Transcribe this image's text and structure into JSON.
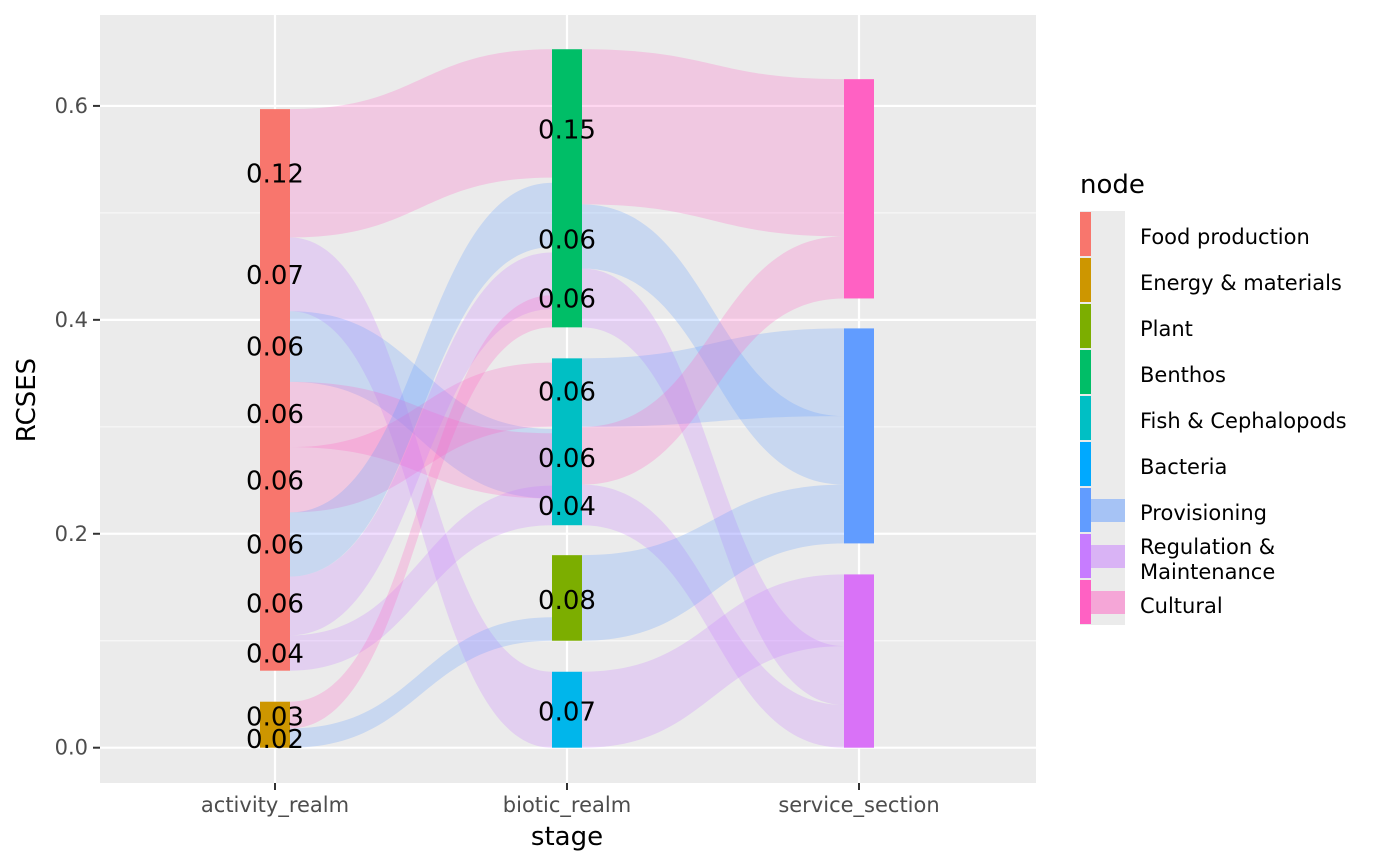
{
  "chart_data": {
    "type": "sankey",
    "xlabel": "stage",
    "ylabel": "RCSES",
    "ylim": [
      -0.033,
      0.685
    ],
    "y_ticks": [
      0.0,
      0.2,
      0.4,
      0.6
    ],
    "y_tick_labels": [
      "0.0",
      "0.2",
      "0.4",
      "0.6"
    ],
    "stages": [
      "activity_realm",
      "biotic_realm",
      "service_section"
    ],
    "grid": true,
    "legend_position": "right",
    "legend_title": "node",
    "legend": [
      {
        "label": "Food production",
        "color": "#F8766D",
        "kind": "node"
      },
      {
        "label": "Energy & materials",
        "color": "#CD9600",
        "kind": "node"
      },
      {
        "label": "Plant",
        "color": "#7CAE00",
        "kind": "node"
      },
      {
        "label": "Benthos",
        "color": "#00BE67",
        "kind": "node"
      },
      {
        "label": "Fish & Cephalopods",
        "color": "#00BFC4",
        "kind": "node"
      },
      {
        "label": "Bacteria",
        "color": "#00A9FF",
        "kind": "node"
      },
      {
        "label": "Provisioning",
        "color": "#619CFF",
        "kind": "flow",
        "label_lines": [
          "Provisioning"
        ]
      },
      {
        "label": "Regulation & Maintenance",
        "color": "#C77CFF",
        "kind": "flow",
        "label_lines": [
          "Regulation &",
          "Maintenance"
        ]
      },
      {
        "label": "Cultural",
        "color": "#FF61C3",
        "kind": "flow",
        "label_lines": [
          "Cultural"
        ]
      }
    ],
    "nodes": [
      {
        "stage": 0,
        "name": "Food production",
        "color": "#F8766D",
        "ymin": 0.072,
        "ymax": 0.597
      },
      {
        "stage": 0,
        "name": "Energy & materials",
        "color": "#CD9600",
        "ymin": 0.0,
        "ymax": 0.043
      },
      {
        "stage": 1,
        "name": "Benthos",
        "color": "#00BE67",
        "ymin": 0.393,
        "ymax": 0.653
      },
      {
        "stage": 1,
        "name": "Fish & Cephalopods",
        "color": "#00BFC4",
        "ymin": 0.208,
        "ymax": 0.364
      },
      {
        "stage": 1,
        "name": "Plant",
        "color": "#7CAE00",
        "ymin": 0.1,
        "ymax": 0.18
      },
      {
        "stage": 1,
        "name": "Bacteria",
        "color": "#00B6EB",
        "ymin": 0.0,
        "ymax": 0.071
      },
      {
        "stage": 2,
        "name": "Cultural",
        "color": "#FF61C3",
        "ymin": 0.42,
        "ymax": 0.625
      },
      {
        "stage": 2,
        "name": "Provisioning",
        "color": "#619CFF",
        "ymin": 0.191,
        "ymax": 0.392
      },
      {
        "stage": 2,
        "name": "Regulation & Maintenance",
        "color": "#D972F7",
        "ymin": 0.0,
        "ymax": 0.162
      }
    ],
    "flows": [
      {
        "from_stage": 0,
        "to_stage": 1,
        "service": "Cultural",
        "y0": [
          0.477,
          0.597
        ],
        "y1": [
          0.533,
          0.653
        ]
      },
      {
        "from_stage": 0,
        "to_stage": 1,
        "service": "Regulation & Maintenance",
        "y0": [
          0.408,
          0.477
        ],
        "y1": [
          0.0,
          0.071
        ]
      },
      {
        "from_stage": 0,
        "to_stage": 1,
        "service": "Provisioning",
        "y0": [
          0.342,
          0.408
        ],
        "y1": [
          0.233,
          0.298
        ]
      },
      {
        "from_stage": 0,
        "to_stage": 1,
        "service": "Cultural",
        "y0": [
          0.281,
          0.342
        ],
        "y1": [
          0.233,
          0.294
        ]
      },
      {
        "from_stage": 0,
        "to_stage": 1,
        "service": "Cultural",
        "y0": [
          0.22,
          0.281
        ],
        "y1": [
          0.3,
          0.36
        ]
      },
      {
        "from_stage": 0,
        "to_stage": 1,
        "service": "Provisioning",
        "y0": [
          0.16,
          0.22
        ],
        "y1": [
          0.468,
          0.528
        ]
      },
      {
        "from_stage": 0,
        "to_stage": 1,
        "service": "Regulation & Maintenance",
        "y0": [
          0.105,
          0.16
        ],
        "y1": [
          0.41,
          0.463
        ]
      },
      {
        "from_stage": 0,
        "to_stage": 1,
        "service": "Regulation & Maintenance",
        "y0": [
          0.072,
          0.105
        ],
        "y1": [
          0.208,
          0.245
        ]
      },
      {
        "from_stage": 0,
        "to_stage": 1,
        "service": "Cultural",
        "y0": [
          0.018,
          0.043
        ],
        "y1": [
          0.393,
          0.423
        ]
      },
      {
        "from_stage": 0,
        "to_stage": 1,
        "service": "Provisioning",
        "y0": [
          0.0,
          0.018
        ],
        "y1": [
          0.1,
          0.122
        ]
      },
      {
        "from_stage": 1,
        "to_stage": 2,
        "service": "Cultural",
        "y0": [
          0.508,
          0.653
        ],
        "y1": [
          0.478,
          0.625
        ]
      },
      {
        "from_stage": 1,
        "to_stage": 2,
        "service": "Provisioning",
        "y0": [
          0.448,
          0.508
        ],
        "y1": [
          0.246,
          0.31
        ]
      },
      {
        "from_stage": 1,
        "to_stage": 2,
        "service": "Regulation & Maintenance",
        "y0": [
          0.393,
          0.448
        ],
        "y1": [
          0.04,
          0.095
        ]
      },
      {
        "from_stage": 1,
        "to_stage": 2,
        "service": "Provisioning",
        "y0": [
          0.3,
          0.364
        ],
        "y1": [
          0.31,
          0.392
        ]
      },
      {
        "from_stage": 1,
        "to_stage": 2,
        "service": "Cultural",
        "y0": [
          0.246,
          0.3
        ],
        "y1": [
          0.42,
          0.478
        ]
      },
      {
        "from_stage": 1,
        "to_stage": 2,
        "service": "Regulation & Maintenance",
        "y0": [
          0.208,
          0.246
        ],
        "y1": [
          0.0,
          0.04
        ]
      },
      {
        "from_stage": 1,
        "to_stage": 2,
        "service": "Provisioning",
        "y0": [
          0.1,
          0.18
        ],
        "y1": [
          0.191,
          0.246
        ]
      },
      {
        "from_stage": 1,
        "to_stage": 2,
        "service": "Regulation & Maintenance",
        "y0": [
          0.0,
          0.071
        ],
        "y1": [
          0.095,
          0.162
        ]
      }
    ],
    "value_labels": [
      {
        "stage": 0,
        "y": 0.537,
        "text": "0.12"
      },
      {
        "stage": 0,
        "y": 0.442,
        "text": "0.07"
      },
      {
        "stage": 0,
        "y": 0.375,
        "text": "0.06"
      },
      {
        "stage": 0,
        "y": 0.312,
        "text": "0.06"
      },
      {
        "stage": 0,
        "y": 0.25,
        "text": "0.06"
      },
      {
        "stage": 0,
        "y": 0.19,
        "text": "0.06"
      },
      {
        "stage": 0,
        "y": 0.135,
        "text": "0.06"
      },
      {
        "stage": 0,
        "y": 0.088,
        "text": "0.04"
      },
      {
        "stage": 0,
        "y": 0.029,
        "text": "0.03"
      },
      {
        "stage": 0,
        "y": 0.008,
        "text": "0.02"
      },
      {
        "stage": 1,
        "y": 0.578,
        "text": "0.15"
      },
      {
        "stage": 1,
        "y": 0.475,
        "text": "0.06"
      },
      {
        "stage": 1,
        "y": 0.42,
        "text": "0.06"
      },
      {
        "stage": 1,
        "y": 0.333,
        "text": "0.06"
      },
      {
        "stage": 1,
        "y": 0.271,
        "text": "0.06"
      },
      {
        "stage": 1,
        "y": 0.226,
        "text": "0.04"
      },
      {
        "stage": 1,
        "y": 0.138,
        "text": "0.08"
      },
      {
        "stage": 1,
        "y": 0.034,
        "text": "0.07"
      }
    ]
  }
}
